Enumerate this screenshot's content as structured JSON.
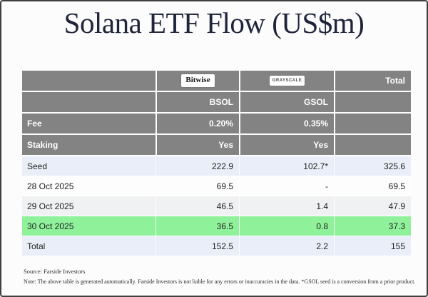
{
  "title": "Solana ETF Flow (US$m)",
  "colors": {
    "header_gray": "#838383",
    "stripe_blue": "#e9eef8",
    "stripe_gray": "#f0f1f2",
    "highlight_green": "#8ff29b",
    "title_color": "#20243a"
  },
  "table": {
    "header": {
      "bitwise_logo_text": "Bitwise",
      "grayscale_logo_text": "GRAYSCALE",
      "total_label": "Total"
    },
    "tickers": {
      "bsol": "BSOL",
      "gsol": "GSOL"
    },
    "meta_rows": [
      {
        "label": "Fee",
        "bsol": "0.20%",
        "gsol": "0.35%",
        "total": ""
      },
      {
        "label": "Staking",
        "bsol": "Yes",
        "gsol": "Yes",
        "total": ""
      }
    ],
    "flow_rows": [
      {
        "label": "Seed",
        "bsol": "222.9",
        "gsol": "102.7*",
        "total": "325.6"
      },
      {
        "label": "28 Oct 2025",
        "bsol": "69.5",
        "gsol": "-",
        "total": "69.5"
      },
      {
        "label": "29 Oct 2025",
        "bsol": "46.5",
        "gsol": "1.4",
        "total": "47.9"
      },
      {
        "label": "30 Oct 2025",
        "bsol": "36.5",
        "gsol": "0.8",
        "total": "37.3"
      },
      {
        "label": "Total",
        "bsol": "152.5",
        "gsol": "2.2",
        "total": "155"
      }
    ]
  },
  "footer": {
    "source": "Source: Farside Investors",
    "note": "Note: The above table is generated automatically. Farside Investors is not liable for any errors or inaccuracies in the data. *GSOL seed is a conversion from a prior product."
  },
  "chart_data": {
    "type": "table",
    "title": "Solana ETF Flow (US$m)",
    "columns": [
      "",
      "Bitwise BSOL",
      "Grayscale GSOL",
      "Total"
    ],
    "rows": [
      [
        "Fee",
        "0.20%",
        "0.35%",
        ""
      ],
      [
        "Staking",
        "Yes",
        "Yes",
        ""
      ],
      [
        "Seed",
        222.9,
        "102.7*",
        325.6
      ],
      [
        "28 Oct 2025",
        69.5,
        "-",
        69.5
      ],
      [
        "29 Oct 2025",
        46.5,
        1.4,
        47.9
      ],
      [
        "30 Oct 2025",
        36.5,
        0.8,
        37.3
      ],
      [
        "Total",
        152.5,
        2.2,
        155
      ]
    ],
    "annotations": {
      "highlighted_row": "30 Oct 2025",
      "asterisk_note": "*GSOL seed is a conversion from a prior product"
    }
  }
}
